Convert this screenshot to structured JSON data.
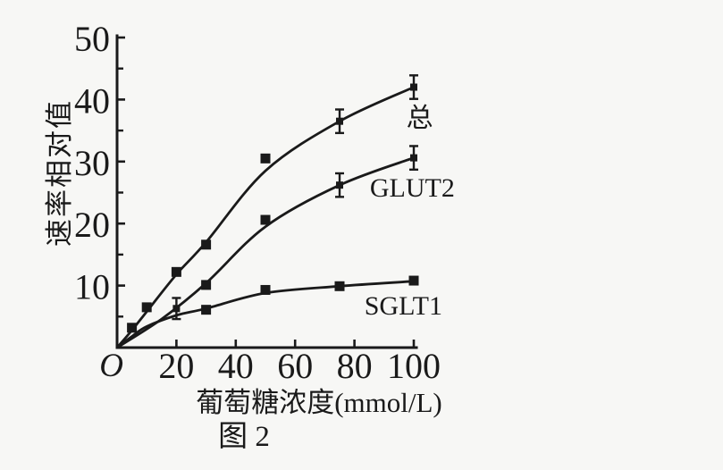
{
  "figure": {
    "caption": "图 2",
    "background_color": "#f7f7f5",
    "ink_color": "#1a1a1a"
  },
  "chart_data": {
    "type": "line",
    "title": "",
    "xlabel": "葡萄糖浓度(mmol/L)",
    "ylabel": "速率相对值",
    "origin_label": "O",
    "xlim": [
      0,
      100
    ],
    "ylim": [
      0,
      50
    ],
    "x_ticks": [
      20,
      40,
      60,
      80,
      100
    ],
    "y_ticks": [
      10,
      20,
      30,
      40,
      50
    ],
    "y_minor_ticks": [
      5,
      15,
      25,
      35,
      45
    ],
    "grid": false,
    "legend_position": "inline-labels-right",
    "marker": "filled-square",
    "series": [
      {
        "name": "总",
        "points": [
          [
            5,
            3.2
          ],
          [
            10,
            6.5
          ],
          [
            20,
            12.2
          ],
          [
            30,
            16.6
          ],
          [
            50,
            30.5
          ],
          [
            75,
            36.5
          ],
          [
            100,
            42
          ]
        ],
        "error_bars": [
          [
            75,
            36.5,
            1.9
          ],
          [
            100,
            42,
            1.9
          ]
        ],
        "curve": [
          [
            0,
            0
          ],
          [
            5,
            2.8
          ],
          [
            10,
            5.8
          ],
          [
            20,
            11.8
          ],
          [
            30,
            17
          ],
          [
            50,
            28.5
          ],
          [
            75,
            36.5
          ],
          [
            100,
            42
          ]
        ],
        "label_pos": [
          102,
          37
        ]
      },
      {
        "name": "GLUT2",
        "points": [
          [
            20,
            6.3
          ],
          [
            30,
            10.1
          ],
          [
            50,
            20.6
          ],
          [
            75,
            26.2
          ],
          [
            100,
            30.6
          ]
        ],
        "error_bars": [
          [
            20,
            6.3,
            1.7
          ],
          [
            75,
            26.2,
            1.9
          ],
          [
            100,
            30.6,
            1.9
          ]
        ],
        "curve": [
          [
            0,
            0
          ],
          [
            15,
            4.6
          ],
          [
            30,
            10.4
          ],
          [
            50,
            19.5
          ],
          [
            75,
            26.2
          ],
          [
            100,
            30.6
          ]
        ],
        "label_pos": [
          99.5,
          25.8
        ]
      },
      {
        "name": "SGLT1",
        "points": [
          [
            30,
            6.1
          ],
          [
            50,
            9.3
          ],
          [
            75,
            9.9
          ],
          [
            100,
            10.8
          ]
        ],
        "error_bars": [],
        "curve": [
          [
            0,
            0
          ],
          [
            5,
            1.8
          ],
          [
            10,
            3.4
          ],
          [
            20,
            5.2
          ],
          [
            30,
            6.3
          ],
          [
            50,
            8.8
          ],
          [
            75,
            9.9
          ],
          [
            100,
            10.7
          ]
        ],
        "label_pos": [
          96.5,
          6.8
        ]
      }
    ]
  }
}
